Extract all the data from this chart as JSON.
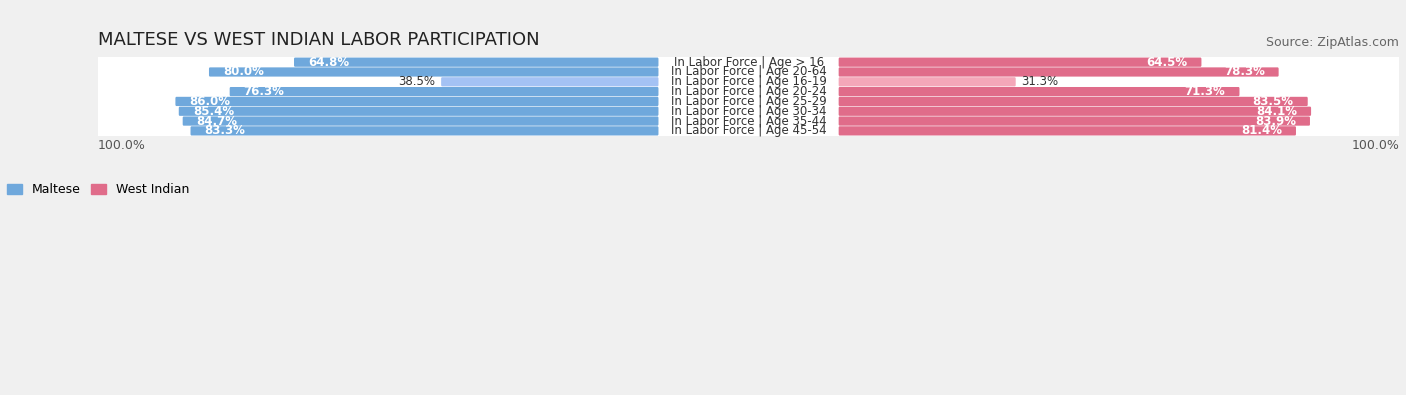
{
  "title": "MALTESE VS WEST INDIAN LABOR PARTICIPATION",
  "source": "Source: ZipAtlas.com",
  "categories": [
    "In Labor Force | Age > 16",
    "In Labor Force | Age 20-64",
    "In Labor Force | Age 16-19",
    "In Labor Force | Age 20-24",
    "In Labor Force | Age 25-29",
    "In Labor Force | Age 30-34",
    "In Labor Force | Age 35-44",
    "In Labor Force | Age 45-54"
  ],
  "maltese_values": [
    64.8,
    80.0,
    38.5,
    76.3,
    86.0,
    85.4,
    84.7,
    83.3
  ],
  "west_indian_values": [
    64.5,
    78.3,
    31.3,
    71.3,
    83.5,
    84.1,
    83.9,
    81.4
  ],
  "maltese_color": "#6fa8dc",
  "maltese_color_light": "#a4c2f4",
  "west_indian_color": "#e06c8a",
  "west_indian_color_light": "#f4a7b9",
  "background_color": "#f0f0f0",
  "row_bg_color": "#ffffff",
  "bar_max": 100.0,
  "label_fontsize": 9,
  "title_fontsize": 13,
  "legend_fontsize": 9,
  "source_fontsize": 9
}
